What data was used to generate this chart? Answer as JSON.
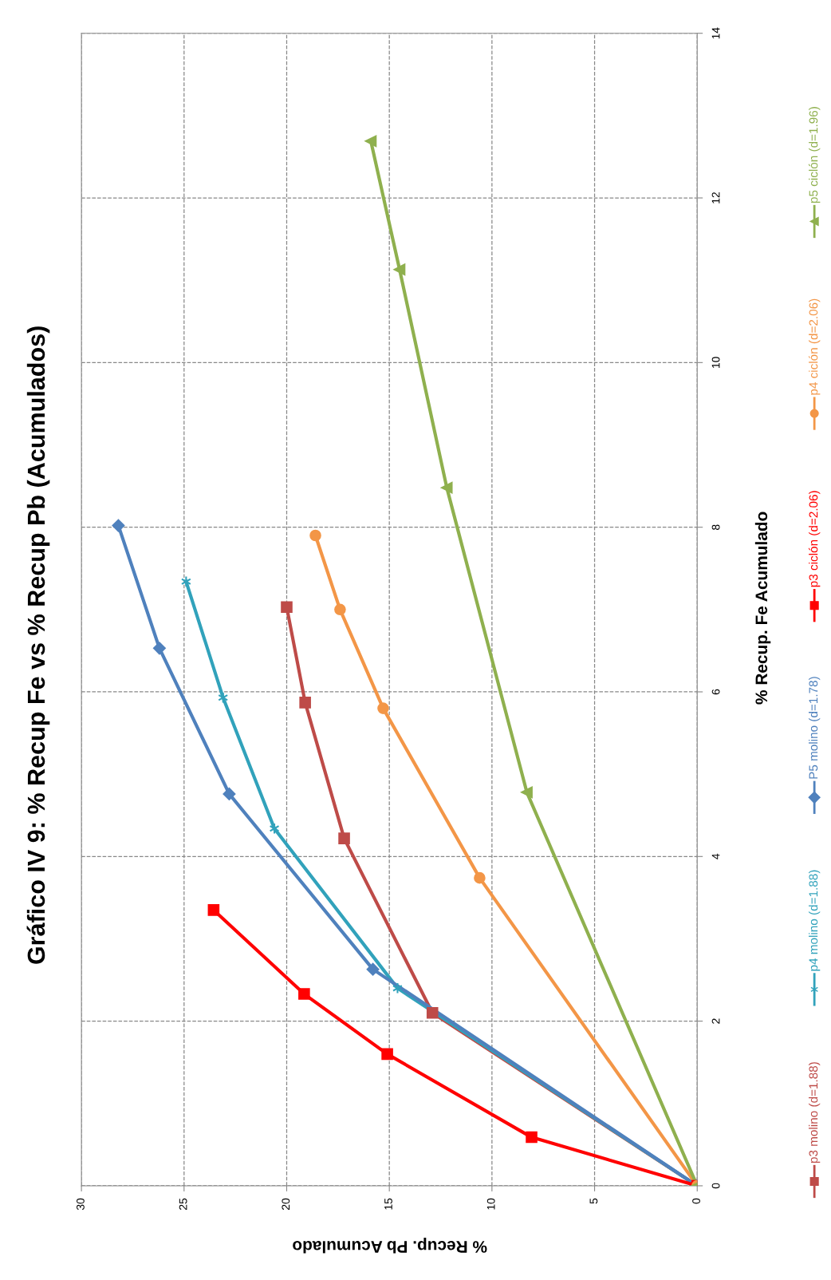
{
  "chart_data": {
    "type": "line",
    "title": "Gráfico IV 9: % Recup Fe vs % Recup Pb (Acumulados)",
    "xlabel": "% Recup. Pb Acumulado",
    "ylabel": "% Recup. Fe Acumulado",
    "xlim": [
      30,
      0
    ],
    "xticks": [
      30,
      25,
      20,
      15,
      10,
      5,
      0
    ],
    "ylim": [
      0,
      14
    ],
    "yticks": [
      0,
      2,
      4,
      6,
      8,
      10,
      12,
      14
    ],
    "grid": true,
    "legend": "right",
    "line_style": "solid",
    "series": [
      {
        "name": "p3 molino (d=1.88)",
        "color": "#be4b48",
        "marker": "square",
        "x": [
          0,
          12.9,
          17.2,
          19.1,
          20.0
        ],
        "values": [
          0,
          2.1,
          4.22,
          5.87,
          7.03
        ]
      },
      {
        "name": "p4 molino (d=1.88)",
        "color": "#31a2bb",
        "marker": "cross",
        "x": [
          0,
          14.6,
          20.6,
          23.1,
          24.9
        ],
        "values": [
          0,
          2.4,
          4.34,
          5.93,
          7.34
        ]
      },
      {
        "name": "P5 molino (d=1.78)",
        "color": "#4f81bd",
        "marker": "diamond",
        "x": [
          0,
          15.8,
          22.8,
          26.2,
          28.2
        ],
        "values": [
          0,
          2.63,
          4.76,
          6.53,
          8.02
        ]
      },
      {
        "name": "p3 ciclón (d=2.06)",
        "color": "#ff0000",
        "marker": "square",
        "x": [
          0,
          8.07,
          15.1,
          19.15,
          23.56
        ],
        "values": [
          0,
          0.59,
          1.6,
          2.33,
          3.35
        ]
      },
      {
        "name": "p4 ciclón (d=2.06)",
        "color": "#f39647",
        "marker": "circle",
        "x": [
          0,
          10.6,
          15.3,
          17.4,
          18.6
        ],
        "values": [
          0,
          3.74,
          5.8,
          7.0,
          7.9
        ]
      },
      {
        "name": "p5 ciclón (d=1.96)",
        "color": "#8fb04e",
        "marker": "triangle",
        "x": [
          0,
          8.3,
          12.2,
          14.5,
          15.9
        ],
        "values": [
          0,
          4.78,
          8.48,
          11.13,
          12.69
        ]
      }
    ]
  }
}
